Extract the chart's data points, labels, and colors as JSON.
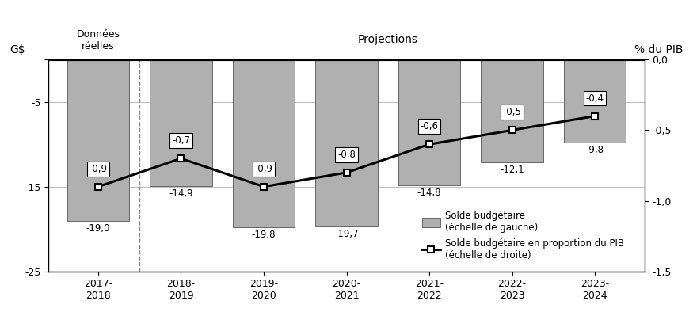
{
  "categories": [
    "2017-\n2018",
    "2018-\n2019",
    "2019-\n2020",
    "2020-\n2021",
    "2021-\n2022",
    "2022-\n2023",
    "2023-\n2024"
  ],
  "bar_values": [
    -19.0,
    -14.9,
    -19.8,
    -19.7,
    -14.8,
    -12.1,
    -9.8
  ],
  "line_values": [
    -0.9,
    -0.7,
    -0.9,
    -0.8,
    -0.6,
    -0.5,
    -0.4
  ],
  "bar_labels": [
    "-19,0",
    "-14,9",
    "-19,8",
    "-19,7",
    "-14,8",
    "-12,1",
    "-9,8"
  ],
  "line_labels": [
    "-0,9",
    "-0,7",
    "-0,9",
    "-0,8",
    "-0,6",
    "-0,5",
    "-0,4"
  ],
  "bar_color": "#b0b0b0",
  "line_color": "#000000",
  "right_ylabel": "% du PIB",
  "ylim_left": [
    -25,
    0
  ],
  "ylim_right": [
    -1.5,
    0
  ],
  "ytick_labels_left": [
    "",
    "-5",
    "-15",
    "-25"
  ],
  "ytick_labels_right": [
    "0,0",
    "-0,5",
    "-1,0",
    "-1,5"
  ],
  "donnees_reelles_label": "Données\nréelles",
  "projections_label": "Projections",
  "legend_bar_label": "Solde budgétaire\n(échelle de gauche)",
  "legend_line_label": "Solde budgétaire en proportion du PIB\n(échelle de droite)",
  "background_color": "#ffffff",
  "bar_width": 0.75,
  "line_label_offsets": [
    1.5,
    1.5,
    1.5,
    1.5,
    1.5,
    1.5,
    1.5
  ]
}
